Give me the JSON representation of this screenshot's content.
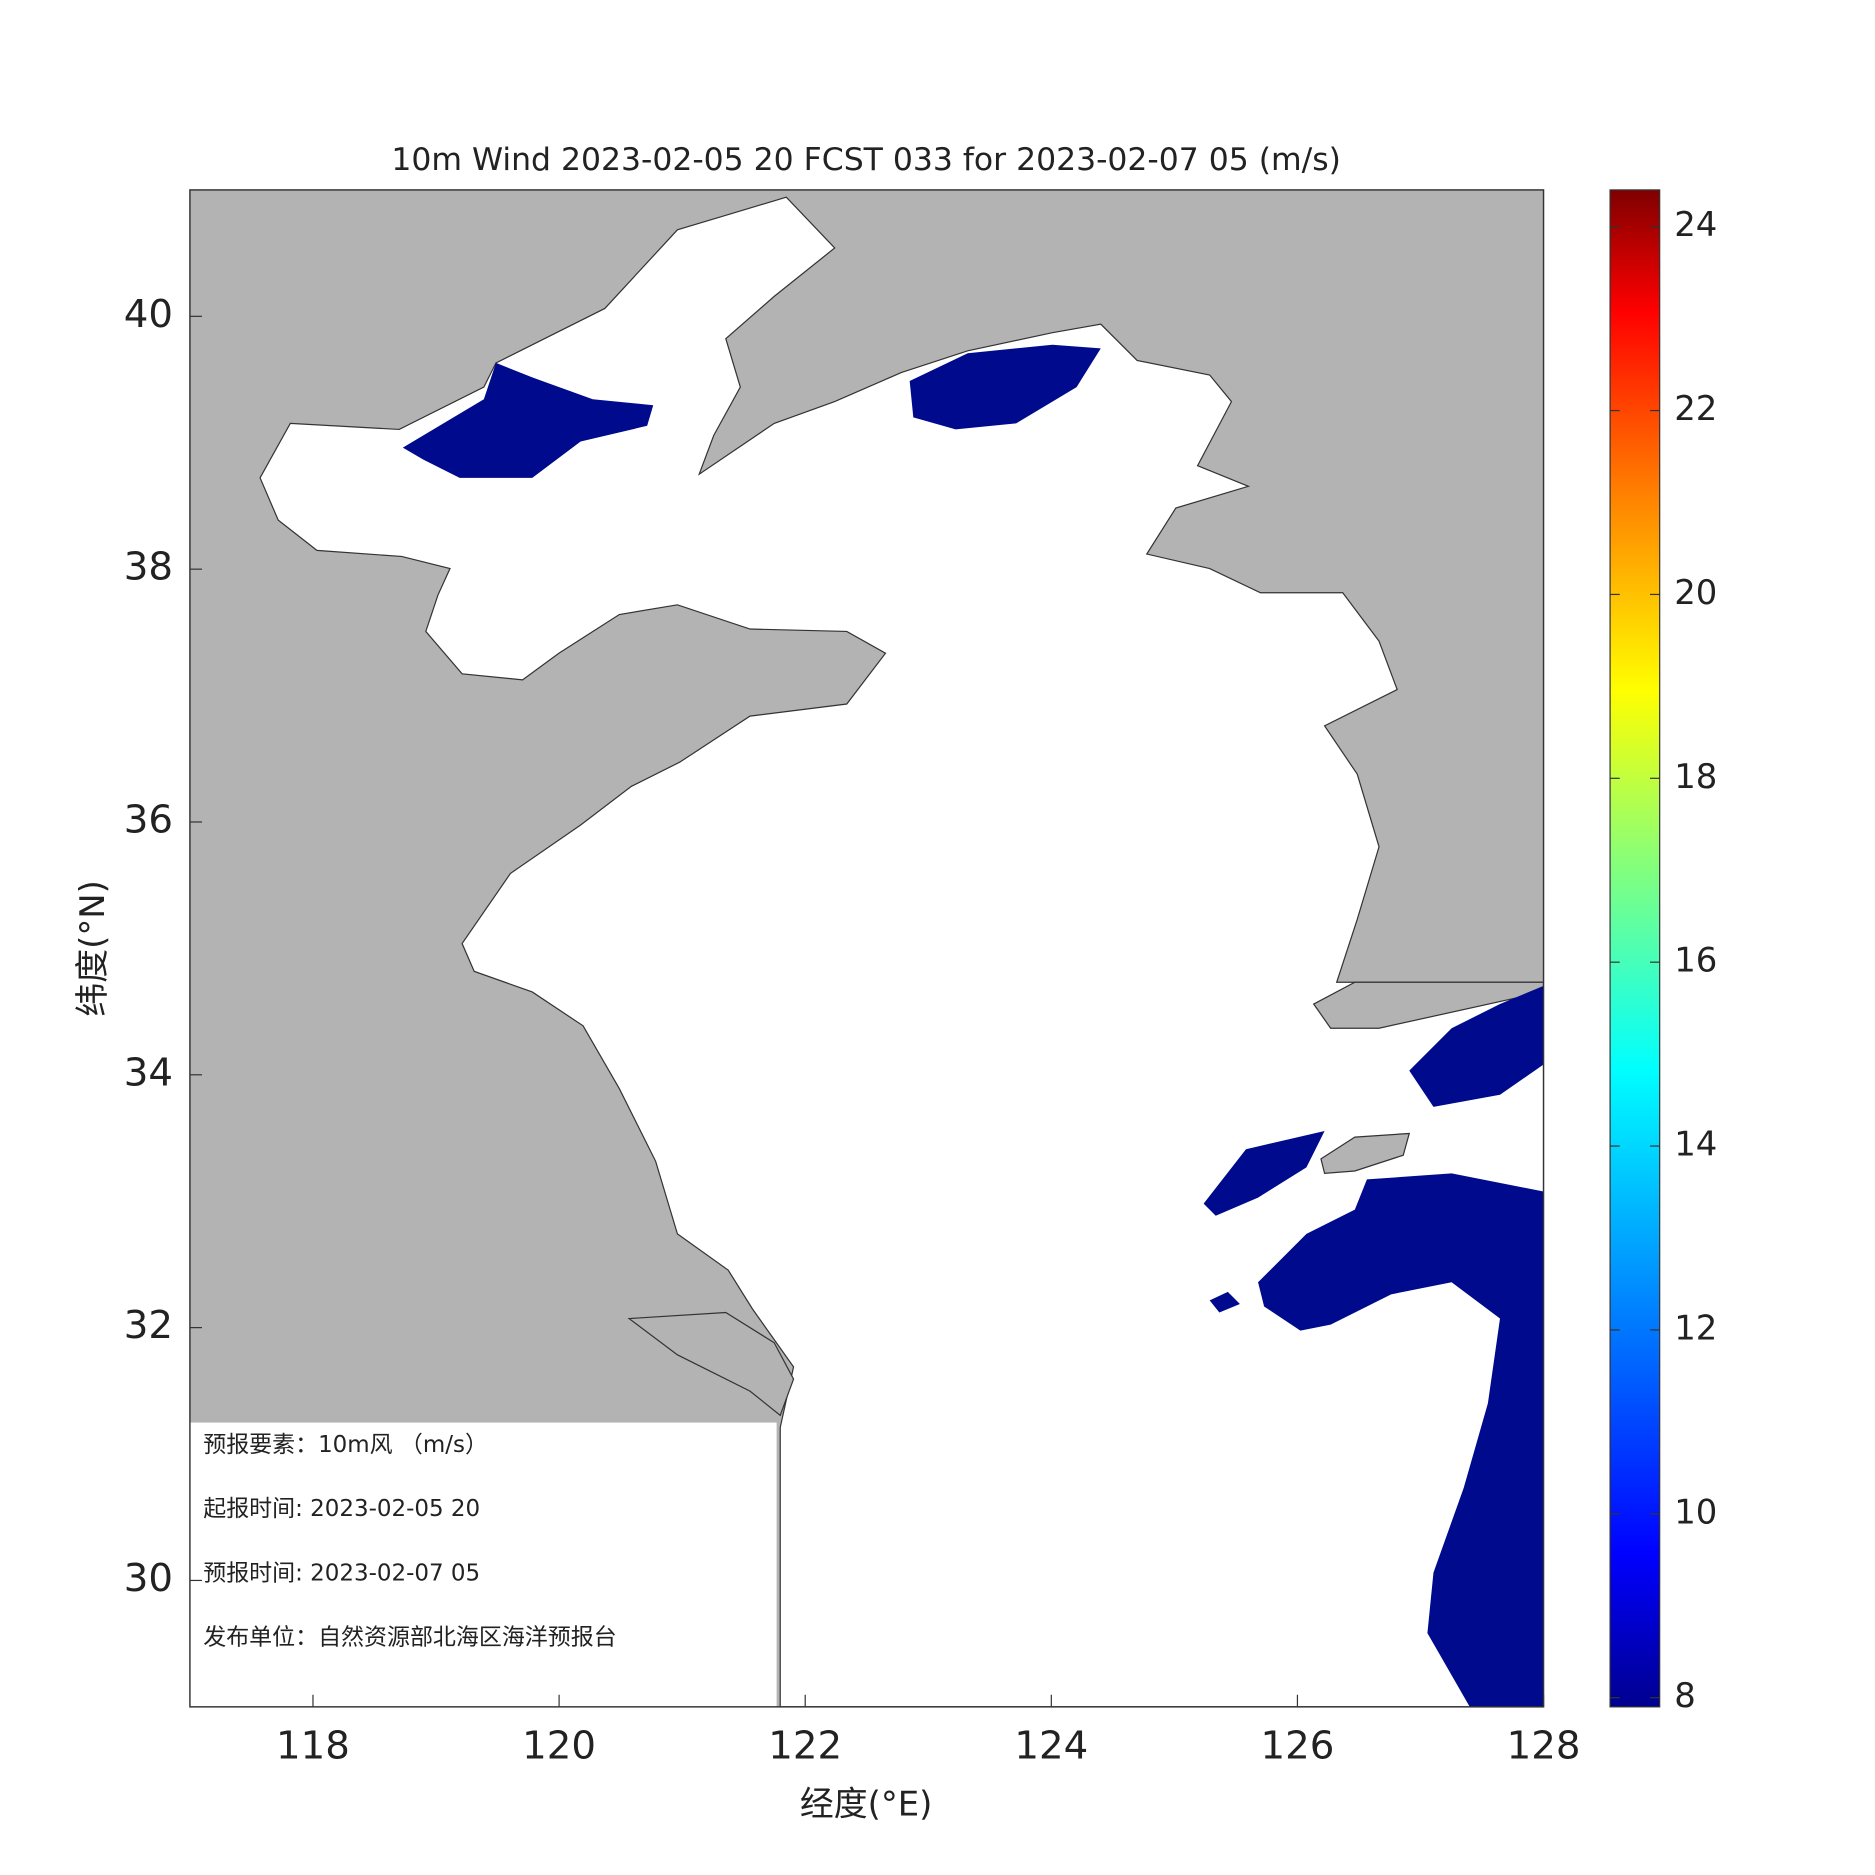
{
  "map": {
    "title": "10m Wind 2023-02-05 20 FCST 033 for 2023-02-07 05 (m/s)",
    "xlabel": "经度(°E)",
    "ylabel": "纬度(°N)",
    "xlim": [
      117,
      128
    ],
    "ylim": [
      29,
      41
    ],
    "xticks": [
      118,
      120,
      122,
      124,
      126,
      128
    ],
    "yticks": [
      30,
      32,
      34,
      36,
      38,
      40
    ]
  },
  "colorbar": {
    "clim": [
      7.9,
      24.4
    ],
    "ticks": [
      8,
      10,
      12,
      14,
      16,
      18,
      20,
      22,
      24
    ]
  },
  "info": {
    "lines": [
      "预报要素：10m风 （m/s）",
      "起报时间: 2023-02-05 20",
      "预报时间: 2023-02-07 05",
      "发布单位：自然资源部北海区海洋预报台"
    ]
  }
}
